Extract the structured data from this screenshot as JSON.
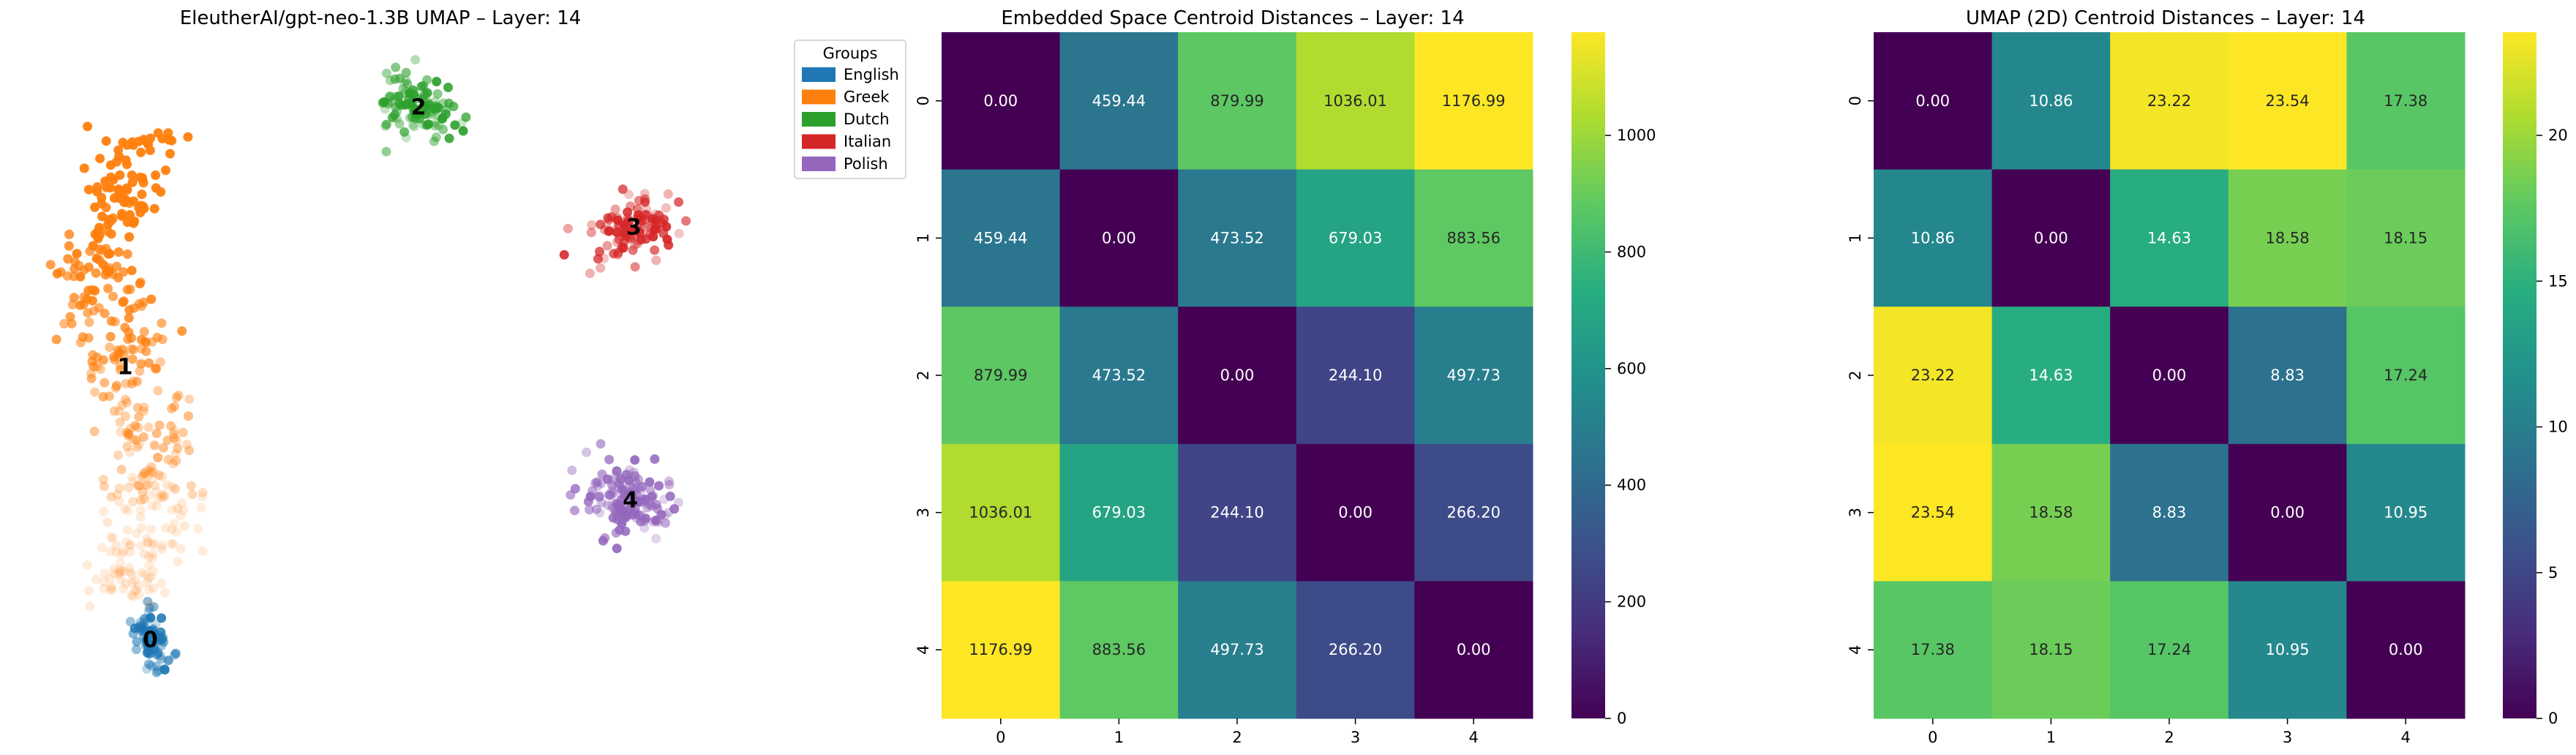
{
  "chart_data": [
    {
      "type": "scatter",
      "title": "EleutherAI/gpt-neo-1.3B UMAP – Layer: 14",
      "legend": {
        "title": "Groups",
        "placement": "outside-right",
        "entries": [
          {
            "label": "English",
            "color": "#1f77b4"
          },
          {
            "label": "Greek",
            "color": "#ff7f0e"
          },
          {
            "label": "Dutch",
            "color": "#2ca02c"
          },
          {
            "label": "Italian",
            "color": "#d62728"
          },
          {
            "label": "Polish",
            "color": "#9467bd"
          }
        ]
      },
      "axes_visible": false,
      "xlim": [
        0,
        100
      ],
      "ylim": [
        0,
        100
      ],
      "clusters": [
        {
          "label": "0",
          "group": "English",
          "color": "#1f77b4",
          "centroid": [
            16.8,
            10.5
          ]
        },
        {
          "label": "1",
          "group": "Greek",
          "color": "#ff7f0e",
          "centroid": [
            13.2,
            51.5
          ]
        },
        {
          "label": "2",
          "group": "Dutch",
          "color": "#2ca02c",
          "centroid": [
            55.2,
            90.5
          ]
        },
        {
          "label": "3",
          "group": "Italian",
          "color": "#d62728",
          "centroid": [
            86.0,
            72.5
          ]
        },
        {
          "label": "4",
          "group": "Polish",
          "color": "#9467bd",
          "centroid": [
            85.5,
            31.5
          ]
        }
      ]
    },
    {
      "type": "heatmap",
      "title": "Embedded Space Centroid Distances – Layer: 14",
      "x_ticks": [
        "0",
        "1",
        "2",
        "3",
        "4"
      ],
      "y_ticks": [
        "0",
        "1",
        "2",
        "3",
        "4"
      ],
      "cell_labels": [
        [
          "0.00",
          "459.44",
          "879.99",
          "1036.01",
          "1176.99"
        ],
        [
          "459.44",
          "0.00",
          "473.52",
          "679.03",
          "883.56"
        ],
        [
          "879.99",
          "473.52",
          "0.00",
          "244.10",
          "497.73"
        ],
        [
          "1036.01",
          "679.03",
          "244.10",
          "0.00",
          "266.20"
        ],
        [
          "1176.99",
          "883.56",
          "497.73",
          "266.20",
          "0.00"
        ]
      ],
      "colormap": "viridis",
      "color_range": [
        0,
        1176.99
      ],
      "colorbar_ticks": [
        "0",
        "200",
        "400",
        "600",
        "800",
        "1000"
      ],
      "colorbar_values": [
        0,
        200,
        400,
        600,
        800,
        1000
      ]
    },
    {
      "type": "heatmap",
      "title": "UMAP (2D) Centroid Distances – Layer: 14",
      "x_ticks": [
        "0",
        "1",
        "2",
        "3",
        "4"
      ],
      "y_ticks": [
        "0",
        "1",
        "2",
        "3",
        "4"
      ],
      "cell_labels": [
        [
          "0.00",
          "10.86",
          "23.22",
          "23.54",
          "17.38"
        ],
        [
          "10.86",
          "0.00",
          "14.63",
          "18.58",
          "18.15"
        ],
        [
          "23.22",
          "14.63",
          "0.00",
          "8.83",
          "17.24"
        ],
        [
          "23.54",
          "18.58",
          "8.83",
          "0.00",
          "10.95"
        ],
        [
          "17.38",
          "18.15",
          "17.24",
          "10.95",
          "0.00"
        ]
      ],
      "colormap": "viridis",
      "color_range": [
        0,
        23.54
      ],
      "colorbar_ticks": [
        "0",
        "5",
        "10",
        "15",
        "20"
      ],
      "colorbar_values": [
        0,
        5,
        10,
        15,
        20
      ]
    }
  ]
}
